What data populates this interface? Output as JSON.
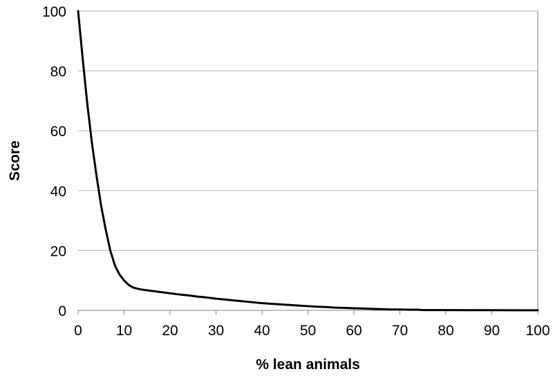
{
  "chart_data": {
    "type": "line",
    "title": "",
    "xlabel": "% lean animals",
    "ylabel": "Score",
    "xlim": [
      0,
      100
    ],
    "ylim": [
      0,
      100
    ],
    "x_ticks": [
      0,
      10,
      20,
      30,
      40,
      50,
      60,
      70,
      80,
      90,
      100
    ],
    "y_ticks": [
      0,
      20,
      40,
      60,
      80,
      100
    ],
    "x_tick_labels": [
      "0",
      "10",
      "20",
      "30",
      "40",
      "50",
      "60",
      "70",
      "80",
      "90",
      "100"
    ],
    "y_tick_labels": [
      "0",
      "20",
      "40",
      "60",
      "80",
      "100"
    ],
    "grid": "horizontal",
    "legend": "none",
    "series": [
      {
        "line_color": "#000000",
        "x": [
          0,
          1,
          2,
          3,
          4,
          5,
          6,
          7,
          8,
          9,
          10,
          11,
          12,
          13,
          14,
          15,
          16,
          17,
          18,
          20,
          22,
          24,
          26,
          28,
          30,
          32,
          34,
          36,
          38,
          40,
          42,
          44,
          46,
          48,
          50,
          52,
          54,
          56,
          58,
          60,
          62,
          64,
          66,
          68,
          70,
          72,
          74,
          75,
          80,
          85,
          90,
          95,
          100
        ],
        "y": [
          100,
          84,
          69,
          56,
          45,
          35,
          27,
          20,
          15,
          12,
          10,
          8.5,
          7.6,
          7.2,
          6.9,
          6.7,
          6.5,
          6.3,
          6.1,
          5.7,
          5.3,
          5.0,
          4.6,
          4.3,
          3.9,
          3.6,
          3.3,
          3.0,
          2.7,
          2.4,
          2.2,
          2.0,
          1.8,
          1.6,
          1.4,
          1.2,
          1.1,
          0.9,
          0.8,
          0.7,
          0.6,
          0.5,
          0.4,
          0.3,
          0.3,
          0.2,
          0.2,
          0.1,
          0.1,
          0.05,
          0.05,
          0.02,
          0.02
        ]
      }
    ]
  }
}
